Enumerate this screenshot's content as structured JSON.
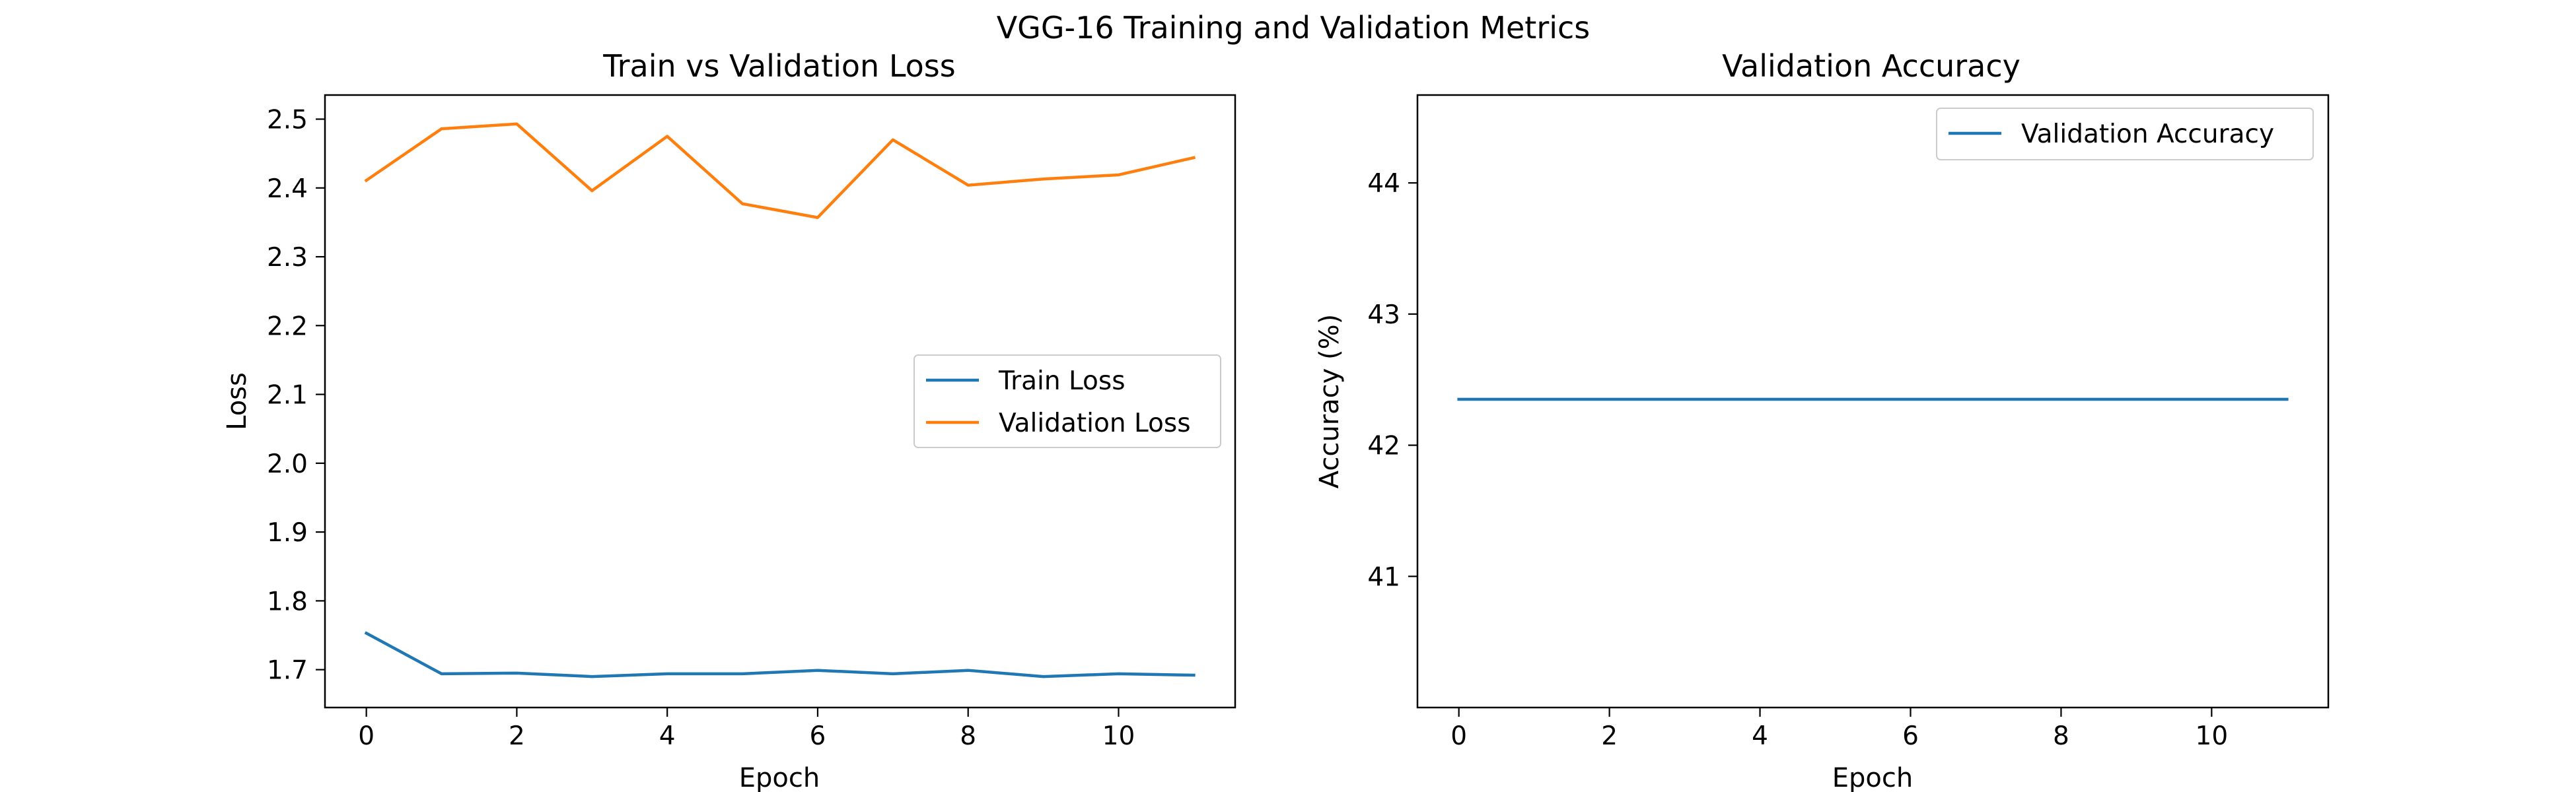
{
  "figure": {
    "suptitle": "VGG-16 Training and Validation Metrics"
  },
  "chart_data": [
    {
      "type": "line",
      "title": "Train vs Validation Loss",
      "xlabel": "Epoch",
      "ylabel": "Loss",
      "xlim": [
        -0.55,
        11.55
      ],
      "ylim": [
        1.645,
        2.535
      ],
      "xticks": [
        0,
        2,
        4,
        6,
        8,
        10
      ],
      "yticks": [
        1.7,
        1.8,
        1.9,
        2.0,
        2.1,
        2.2,
        2.3,
        2.4,
        2.5
      ],
      "ytick_format": 1,
      "grid": false,
      "legend": "center-right",
      "x": [
        0,
        1,
        2,
        3,
        4,
        5,
        6,
        7,
        8,
        9,
        10,
        11
      ],
      "series": [
        {
          "name": "Train Loss",
          "color": "#1f77b4",
          "values": [
            1.753,
            1.694,
            1.695,
            1.69,
            1.694,
            1.694,
            1.699,
            1.694,
            1.699,
            1.69,
            1.694,
            1.692
          ]
        },
        {
          "name": "Validation Loss",
          "color": "#ff7f0e",
          "values": [
            2.411,
            2.486,
            2.493,
            2.396,
            2.475,
            2.377,
            2.357,
            2.47,
            2.404,
            2.413,
            2.419,
            2.444
          ]
        }
      ]
    },
    {
      "type": "line",
      "title": "Validation Accuracy",
      "xlabel": "Epoch",
      "ylabel": "Accuracy (%)",
      "xlim": [
        -0.55,
        11.55
      ],
      "ylim": [
        40.0,
        44.67
      ],
      "xticks": [
        0,
        2,
        4,
        6,
        8,
        10
      ],
      "yticks": [
        41,
        42,
        43,
        44
      ],
      "ytick_format": 0,
      "grid": false,
      "legend": "top-right",
      "x": [
        0,
        1,
        2,
        3,
        4,
        5,
        6,
        7,
        8,
        9,
        10,
        11
      ],
      "series": [
        {
          "name": "Validation Accuracy",
          "color": "#1f77b4",
          "values": [
            42.35,
            42.35,
            42.35,
            42.35,
            42.35,
            42.35,
            42.35,
            42.35,
            42.35,
            42.35,
            42.35,
            42.35
          ]
        }
      ]
    }
  ]
}
